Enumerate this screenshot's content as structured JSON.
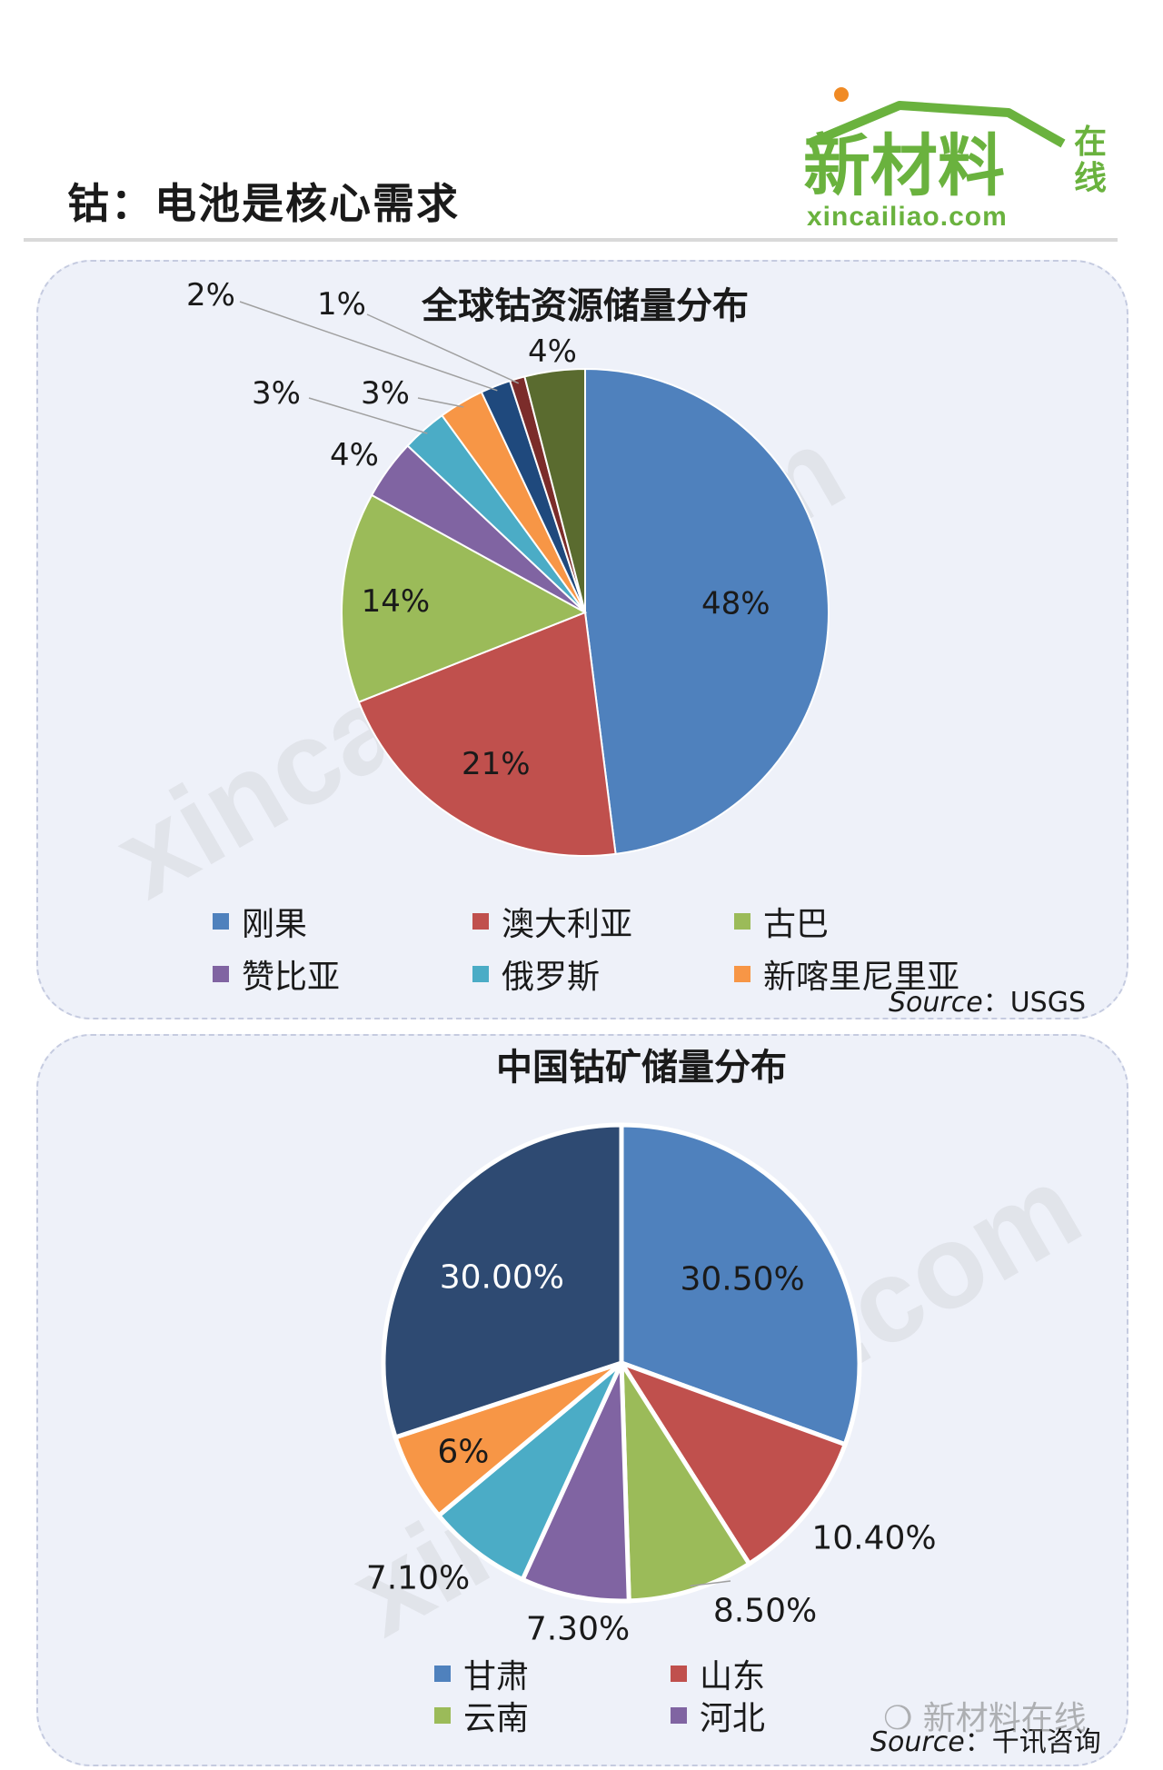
{
  "header": {
    "title": "钴：电池是核心需求",
    "logo": {
      "text": "新材料",
      "side_text": "在线",
      "domain": "xincailiao.com"
    }
  },
  "watermark": {
    "text": "xincailiao.com"
  },
  "colors": {
    "blue": "#4f81bd",
    "red": "#c0504d",
    "green": "#9bbb59",
    "purple": "#8064a2",
    "aqua": "#4bacc6",
    "orange": "#f79646",
    "dark_blue": "#1f497d",
    "dark_red": "#7b2c2a",
    "olive": "#5a6b2f",
    "navy": "#2e4a72",
    "logo_green": "#6ab23e"
  },
  "chart_data": [
    {
      "type": "pie",
      "title": "全球钴资源储量分布",
      "categories": [
        "刚果",
        "澳大利亚",
        "古巴",
        "赞比亚",
        "俄罗斯",
        "新喀里尼里亚",
        "",
        "",
        ""
      ],
      "values": [
        48,
        21,
        14,
        4,
        3,
        3,
        2,
        1,
        4
      ],
      "value_labels": [
        "48%",
        "21%",
        "14%",
        "4%",
        "3%",
        "3%",
        "2%",
        "1%",
        "4%"
      ],
      "colors": [
        "#4f81bd",
        "#c0504d",
        "#9bbb59",
        "#8064a2",
        "#4bacc6",
        "#f79646",
        "#1f497d",
        "#7b2c2a",
        "#5a6b2f"
      ],
      "legend": [
        "刚果",
        "澳大利亚",
        "古巴",
        "赞比亚",
        "俄罗斯",
        "新喀里尼里亚"
      ],
      "legend_placement": "bottom",
      "source_key": "Source",
      "source_sep": "：",
      "source_value": "USGS"
    },
    {
      "type": "pie",
      "title": "中国钴矿储量分布",
      "categories": [
        "甘肃",
        "山东",
        "云南",
        "河北",
        "",
        "",
        ""
      ],
      "values": [
        30.5,
        10.4,
        8.5,
        7.3,
        7.1,
        6,
        30
      ],
      "value_labels": [
        "30.50%",
        "10.40%",
        "8.50%",
        "7.30%",
        "7.10%",
        "6%",
        "30.00%"
      ],
      "colors": [
        "#4f81bd",
        "#c0504d",
        "#9bbb59",
        "#8064a2",
        "#4bacc6",
        "#f79646",
        "#2e4a72"
      ],
      "legend": [
        "甘肃",
        "山东",
        "云南",
        "河北"
      ],
      "legend_placement": "bottom",
      "source_key": "Source",
      "source_sep": "：",
      "source_value": "千讯咨询"
    }
  ],
  "footer": {
    "wechat_text": "新材料在线"
  }
}
